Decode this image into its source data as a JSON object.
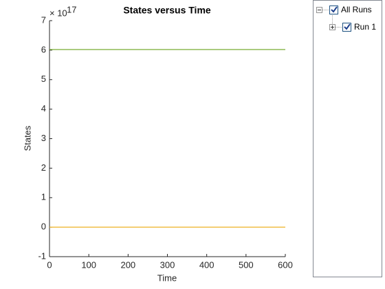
{
  "chart_data": {
    "type": "line",
    "title": "States versus Time",
    "x_label": "Time",
    "y_label": "States",
    "y_multiplier": "× 10",
    "y_exponent": "17",
    "series": [
      {
        "color": "#77ac30",
        "x": [
          0,
          600
        ],
        "values": [
          6.02,
          6.02
        ]
      },
      {
        "color": "#edb120",
        "x": [
          0,
          600
        ],
        "values": [
          0,
          0
        ]
      }
    ],
    "xlim": [
      0,
      600
    ],
    "xticks": [
      0,
      100,
      200,
      300,
      400,
      500,
      600
    ],
    "ylim": [
      -1,
      7
    ],
    "yticks": [
      -1,
      0,
      1,
      2,
      3,
      4,
      5,
      6,
      7
    ],
    "grid": false
  },
  "legend_tree": {
    "root": "All Runs",
    "children": [
      "Run 1"
    ]
  }
}
